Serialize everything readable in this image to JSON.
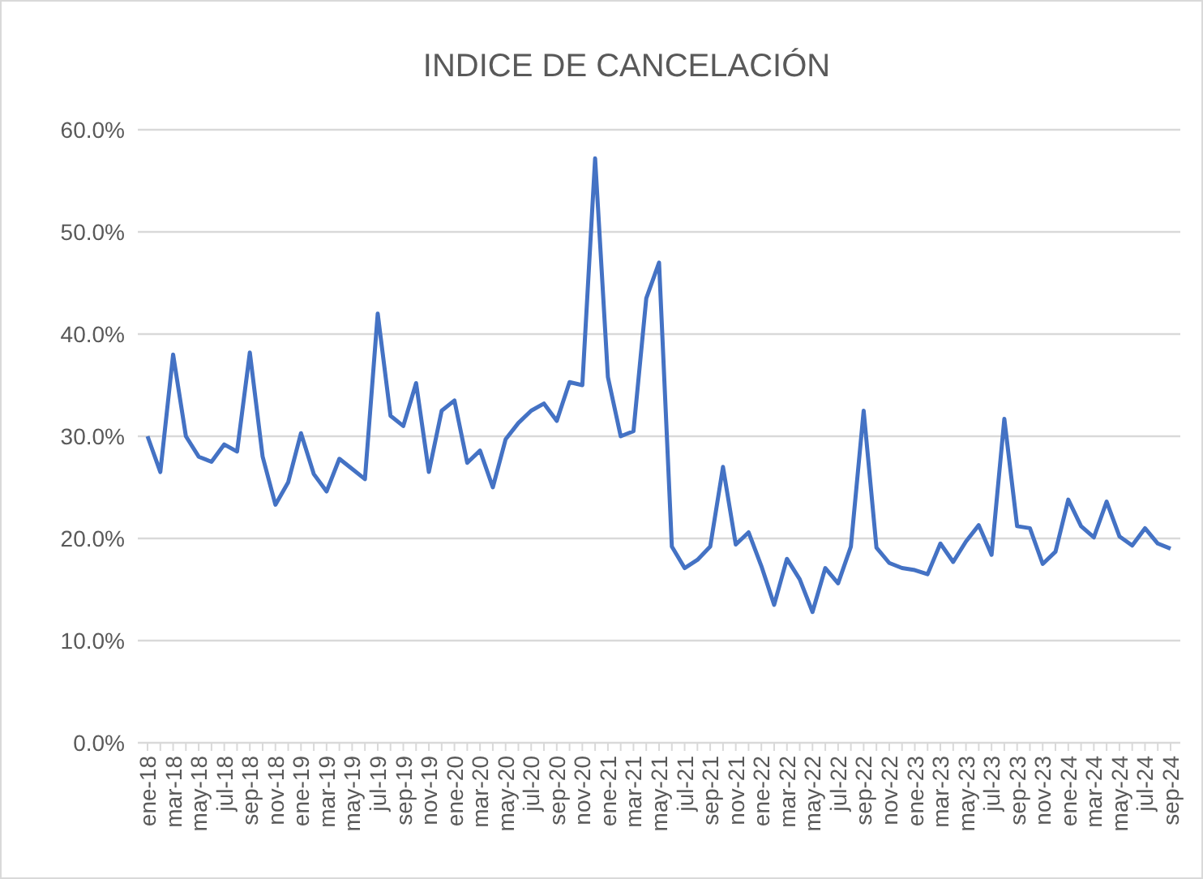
{
  "chart_data": {
    "type": "line",
    "title": "INDICE DE CANCELACIÓN",
    "categories": [
      "ene-18",
      null,
      "mar-18",
      null,
      "may-18",
      null,
      "jul-18",
      null,
      "sep-18",
      null,
      "nov-18",
      null,
      "ene-19",
      null,
      "mar-19",
      null,
      "may-19",
      null,
      "jul-19",
      null,
      "sep-19",
      null,
      "nov-19",
      null,
      "ene-20",
      null,
      "mar-20",
      null,
      "may-20",
      null,
      "jul-20",
      null,
      "sep-20",
      null,
      "nov-20",
      null,
      "ene-21",
      null,
      "mar-21",
      null,
      "may-21",
      null,
      "jul-21",
      null,
      "sep-21",
      null,
      "nov-21",
      null,
      "ene-22",
      null,
      "mar-22",
      null,
      "may-22",
      null,
      "jul-22",
      null,
      "sep-22",
      null,
      "nov-22",
      null,
      "ene-23",
      null,
      "mar-23",
      null,
      "may-23",
      null,
      "jul-23",
      null,
      "sep-23",
      null,
      "nov-23",
      null,
      "ene-24",
      null,
      "mar-24",
      null,
      "may-24",
      null,
      "jul-24",
      null,
      "sep-24"
    ],
    "series": [
      {
        "color": "#4472c4",
        "values": [
          30,
          26.5,
          38,
          30,
          28,
          27.5,
          29.2,
          28.5,
          38.2,
          28,
          23.3,
          25.5,
          30.3,
          26.3,
          24.6,
          27.8,
          26.8,
          25.8,
          42,
          32,
          31,
          35.2,
          26.5,
          32.5,
          33.5,
          27.4,
          28.6,
          25,
          29.7,
          31.3,
          32.5,
          33.2,
          31.5,
          35.3,
          35,
          57.2,
          35.8,
          30,
          30.5,
          43.5,
          47,
          19.2,
          17.1,
          17.9,
          19.2,
          27,
          19.4,
          20.6,
          17.3,
          13.5,
          18,
          16,
          12.8,
          17.1,
          15.6,
          19.2,
          32.5,
          19.1,
          17.6,
          17.1,
          16.9,
          16.5,
          19.5,
          17.7,
          19.7,
          21.3,
          18.4,
          31.7,
          21.2,
          21,
          17.5,
          18.7,
          23.8,
          21.2,
          20.1,
          23.6,
          20.2,
          19.3,
          21,
          19.5,
          19
        ]
      }
    ],
    "ylim": [
      0,
      60
    ],
    "yticks": [
      {
        "value": 0,
        "label": "0.0%"
      },
      {
        "value": 10,
        "label": "10.0%"
      },
      {
        "value": 20,
        "label": "20.0%"
      },
      {
        "value": 30,
        "label": "30.0%"
      },
      {
        "value": 40,
        "label": "40.0%"
      },
      {
        "value": 50,
        "label": "50.0%"
      },
      {
        "value": 60,
        "label": "60.0%"
      }
    ],
    "grid": "y",
    "marker": "none",
    "line_style": "solid"
  }
}
